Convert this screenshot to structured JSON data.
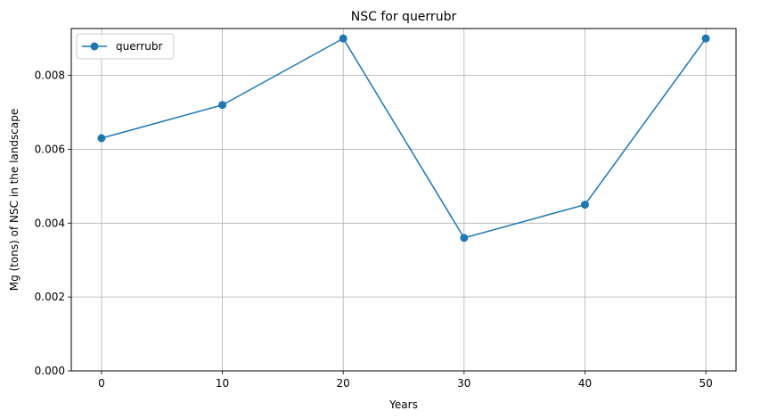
{
  "chart_data": {
    "type": "line",
    "title": "NSC for querrubr",
    "xlabel": "Years",
    "ylabel": "Mg (tons) of NSC in the landscape",
    "x": [
      0,
      10,
      20,
      30,
      40,
      50
    ],
    "series": [
      {
        "name": "querrubr",
        "values": [
          0.0063,
          0.0072,
          0.009,
          0.0036,
          0.0045,
          0.009
        ],
        "color": "#1f77b4",
        "marker": "circle"
      }
    ],
    "xticks": [
      "0",
      "10",
      "20",
      "30",
      "40",
      "50"
    ],
    "yticks": [
      "0.000",
      "0.002",
      "0.004",
      "0.006",
      "0.008"
    ],
    "xlim": [
      -2.5,
      52.5
    ],
    "ylim": [
      0,
      0.00927
    ],
    "grid": true,
    "legend_position": "top-left"
  }
}
